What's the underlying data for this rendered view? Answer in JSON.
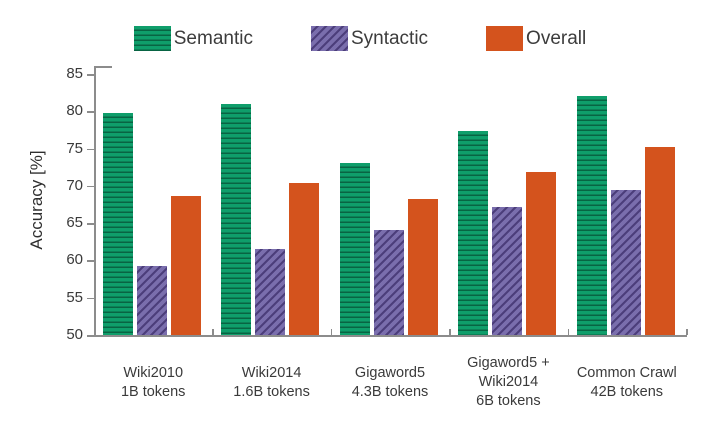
{
  "chart_data": {
    "type": "bar",
    "title": "",
    "ylabel": "Accuracy [%]",
    "xlabel": "",
    "ylim": [
      50,
      85
    ],
    "y_ticks": [
      85,
      80,
      75,
      70,
      65,
      60,
      55,
      50
    ],
    "grid": false,
    "legend_position": "top",
    "categories": [
      [
        "Wiki2010",
        "1B tokens"
      ],
      [
        "Wiki2014",
        "1.6B tokens"
      ],
      [
        "Gigaword5",
        "4.3B tokens"
      ],
      [
        "Gigaword5 +",
        "Wiki2014",
        "6B tokens"
      ],
      [
        "Common Crawl",
        "42B tokens"
      ]
    ],
    "series": [
      {
        "name": "Semantic",
        "color": "#0f9e6b",
        "pattern": "horizontal-stripes",
        "values": [
          79.8,
          81.0,
          73.1,
          77.3,
          82.1
        ]
      },
      {
        "name": "Syntactic",
        "color": "#7a6ead",
        "pattern": "diagonal-stripes",
        "values": [
          59.3,
          61.5,
          64.1,
          67.2,
          69.4
        ]
      },
      {
        "name": "Overall",
        "color": "#d4531d",
        "pattern": "solid",
        "values": [
          68.6,
          70.4,
          68.3,
          71.8,
          75.2
        ]
      }
    ]
  },
  "colors": {
    "axis": "#8c8c8c",
    "text": "#3a3a3a",
    "background": "#ffffff"
  }
}
